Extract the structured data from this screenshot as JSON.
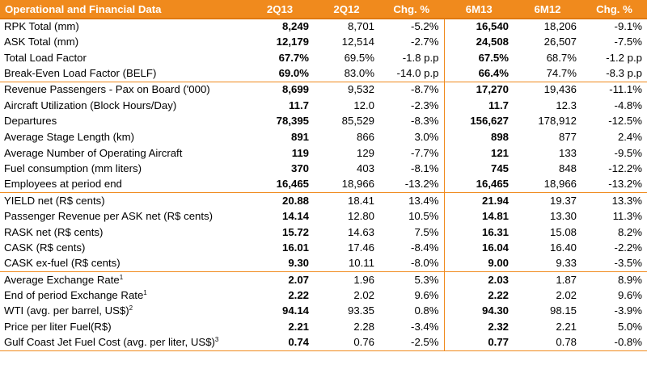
{
  "table": {
    "headers": [
      "Operational and Financial Data",
      "2Q13",
      "2Q12",
      "Chg. %",
      "6M13",
      "6M12",
      "Chg. %"
    ],
    "groups": [
      {
        "rows": [
          {
            "label": "RPK Total (mm)",
            "sup": "",
            "values": [
              "8,249",
              "8,701",
              "-5.2%",
              "16,540",
              "18,206",
              "-9.1%"
            ]
          },
          {
            "label": "ASK Total (mm)",
            "sup": "",
            "values": [
              "12,179",
              "12,514",
              "-2.7%",
              "24,508",
              "26,507",
              "-7.5%"
            ]
          },
          {
            "label": "Total Load Factor",
            "sup": "",
            "values": [
              "67.7%",
              "69.5%",
              "-1.8 p.p",
              "67.5%",
              "68.7%",
              "-1.2 p.p"
            ]
          },
          {
            "label": "Break-Even Load Factor (BELF)",
            "sup": "",
            "values": [
              "69.0%",
              "83.0%",
              "-14.0 p.p",
              "66.4%",
              "74.7%",
              "-8.3 p.p"
            ]
          }
        ]
      },
      {
        "rows": [
          {
            "label": "Revenue Passengers - Pax on Board ('000)",
            "sup": "",
            "values": [
              "8,699",
              "9,532",
              "-8.7%",
              "17,270",
              "19,436",
              "-11.1%"
            ]
          },
          {
            "label": "Aircraft Utilization (Block Hours/Day)",
            "sup": "",
            "values": [
              "11.7",
              "12.0",
              "-2.3%",
              "11.7",
              "12.3",
              "-4.8%"
            ]
          },
          {
            "label": "Departures",
            "sup": "",
            "values": [
              "78,395",
              "85,529",
              "-8.3%",
              "156,627",
              "178,912",
              "-12.5%"
            ]
          },
          {
            "label": "Average Stage Length (km)",
            "sup": "",
            "values": [
              "891",
              "866",
              "3.0%",
              "898",
              "877",
              "2.4%"
            ]
          },
          {
            "label": "Average Number of Operating Aircraft",
            "sup": "",
            "values": [
              "119",
              "129",
              "-7.7%",
              "121",
              "133",
              "-9.5%"
            ]
          },
          {
            "label": "Fuel consumption (mm liters)",
            "sup": "",
            "values": [
              "370",
              "403",
              "-8.1%",
              "745",
              "848",
              "-12.2%"
            ]
          },
          {
            "label": "Employees at period end",
            "sup": "",
            "values": [
              "16,465",
              "18,966",
              "-13.2%",
              "16,465",
              "18,966",
              "-13.2%"
            ]
          }
        ]
      },
      {
        "rows": [
          {
            "label": "YIELD net (R$ cents)",
            "sup": "",
            "values": [
              "20.88",
              "18.41",
              "13.4%",
              "21.94",
              "19.37",
              "13.3%"
            ]
          },
          {
            "label": "Passenger Revenue per ASK net (R$ cents)",
            "sup": "",
            "values": [
              "14.14",
              "12.80",
              "10.5%",
              "14.81",
              "13.30",
              "11.3%"
            ]
          },
          {
            "label": "RASK net (R$ cents)",
            "sup": "",
            "values": [
              "15.72",
              "14.63",
              "7.5%",
              "16.31",
              "15.08",
              "8.2%"
            ]
          },
          {
            "label": "CASK (R$ cents)",
            "sup": "",
            "values": [
              "16.01",
              "17.46",
              "-8.4%",
              "16.04",
              "16.40",
              "-2.2%"
            ]
          },
          {
            "label": "CASK ex-fuel (R$ cents)",
            "sup": "",
            "values": [
              "9.30",
              "10.11",
              "-8.0%",
              "9.00",
              "9.33",
              "-3.5%"
            ]
          }
        ]
      },
      {
        "rows": [
          {
            "label": "Average Exchange Rate",
            "sup": "1",
            "values": [
              "2.07",
              "1.96",
              "5.3%",
              "2.03",
              "1.87",
              "8.9%"
            ]
          },
          {
            "label": "End of period Exchange Rate",
            "sup": "1",
            "values": [
              "2.22",
              "2.02",
              "9.6%",
              "2.22",
              "2.02",
              "9.6%"
            ]
          },
          {
            "label": "WTI (avg. per barrel, US$)",
            "sup": "2",
            "values": [
              "94.14",
              "93.35",
              "0.8%",
              "94.30",
              "98.15",
              "-3.9%"
            ]
          },
          {
            "label": "Price per liter Fuel(R$)",
            "sup": "",
            "values": [
              "2.21",
              "2.28",
              "-3.4%",
              "2.32",
              "2.21",
              "5.0%"
            ]
          },
          {
            "label": "Gulf Coast Jet Fuel Cost (avg. per liter, US$)",
            "sup": "3",
            "values": [
              "0.74",
              "0.76",
              "-2.5%",
              "0.77",
              "0.78",
              "-0.8%"
            ]
          }
        ]
      }
    ]
  },
  "colors": {
    "header_bg": "#f08a1d",
    "header_text": "#ffffff",
    "rule": "#f08a1d"
  }
}
